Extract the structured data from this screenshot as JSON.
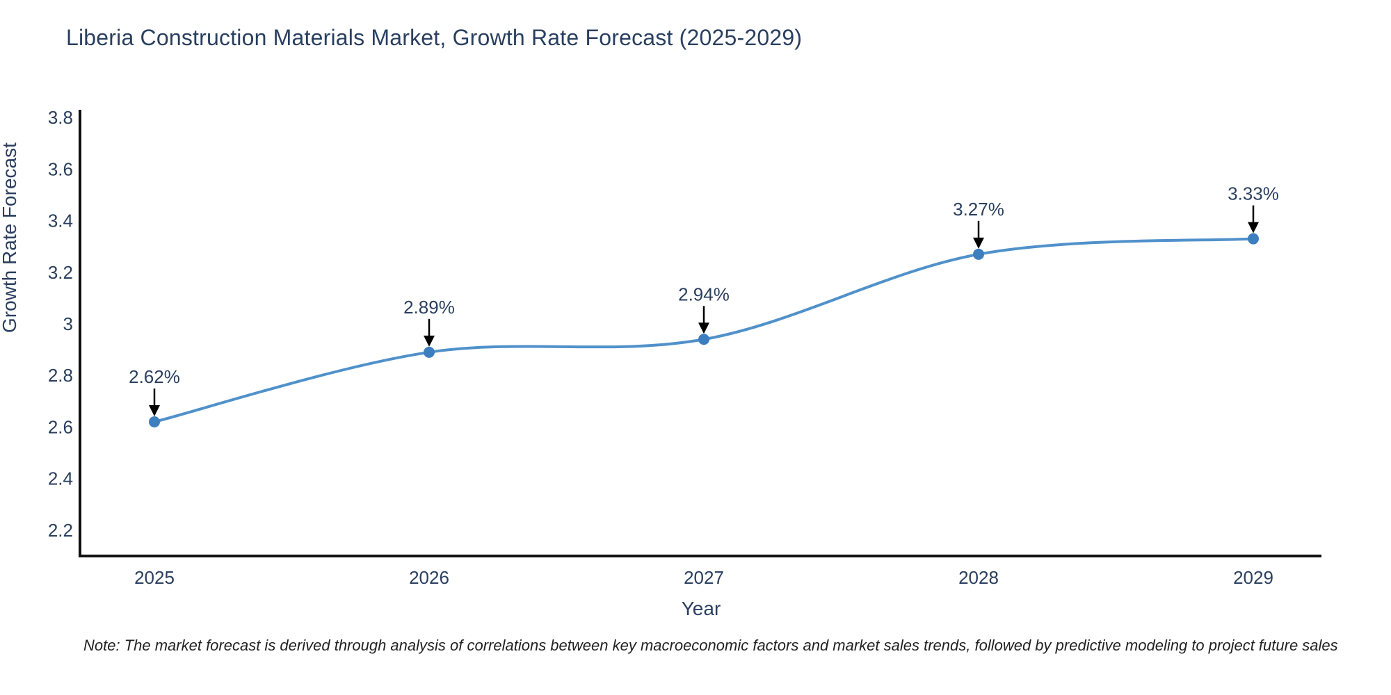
{
  "title": "Liberia Construction Materials Market, Growth Rate Forecast (2025-2029)",
  "note": "Note: The market forecast is derived through analysis of correlations between key macroeconomic factors and market sales trends, followed by predictive modeling to project future sales",
  "chart_data": {
    "type": "line",
    "title": "Liberia Construction Materials Market, Growth Rate Forecast (2025-2029)",
    "xlabel": "Year",
    "ylabel": "Growth Rate Forecast",
    "x": [
      2025,
      2026,
      2027,
      2028,
      2029
    ],
    "series": [
      {
        "name": "Growth Rate Forecast",
        "values": [
          2.62,
          2.89,
          2.94,
          3.27,
          3.33
        ],
        "point_labels": [
          "2.62%",
          "2.89%",
          "2.94%",
          "3.27%",
          "3.33%"
        ]
      }
    ],
    "line_shape": "spline",
    "grid": false,
    "legend": "none",
    "xticks": [
      "2025",
      "2026",
      "2027",
      "2028",
      "2029"
    ],
    "yticks": [
      2.2,
      2.4,
      2.6,
      2.8,
      3.0,
      3.2,
      3.4,
      3.6,
      3.8
    ],
    "ytick_labels": [
      "2.2",
      "2.4",
      "2.6",
      "2.8",
      "3",
      "3.2",
      "3.4",
      "3.6",
      "3.8"
    ],
    "ylim": [
      2.1,
      3.83
    ],
    "colors": {
      "line": "#5091ca",
      "marker": "#3d7ebf",
      "axis": "#111111",
      "text": "#2a3f5f",
      "annotation_text": "#2a3f5f",
      "annotation_arrow": "#000000",
      "note_text": "#222222",
      "background": "#ffffff"
    }
  }
}
